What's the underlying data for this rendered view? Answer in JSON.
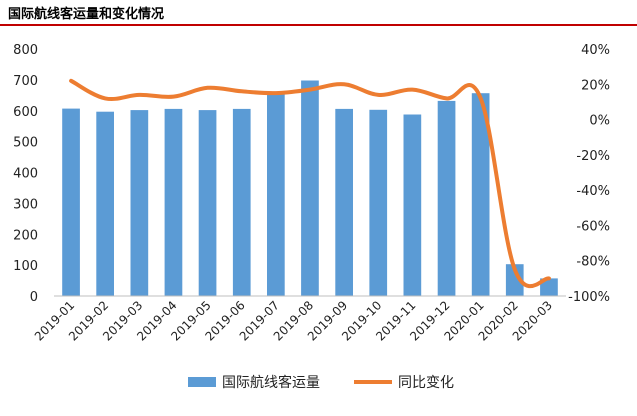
{
  "title": "国际航线客运量和变化情况",
  "colors": {
    "bar": "#5b9bd5",
    "line": "#ed7d31",
    "rule": "#c00000"
  },
  "chart_data": {
    "type": "bar+line",
    "categories": [
      "2019-01",
      "2019-02",
      "2019-03",
      "2019-04",
      "2019-05",
      "2019-06",
      "2019-07",
      "2019-08",
      "2019-09",
      "2019-10",
      "2019-11",
      "2019-12",
      "2020-01",
      "2020-02",
      "2020-03"
    ],
    "series": [
      {
        "name": "国际航线客运量",
        "type": "bar",
        "axis": "left",
        "values": [
          607,
          597,
          602,
          606,
          602,
          606,
          659,
          698,
          606,
          603,
          588,
          632,
          657,
          103,
          57
        ]
      },
      {
        "name": "同比变化",
        "type": "line",
        "axis": "right",
        "values": [
          22,
          12,
          14,
          13,
          18,
          16,
          15,
          17,
          20,
          14,
          17,
          12,
          12,
          -85,
          -90
        ]
      }
    ],
    "y_left": {
      "ylim": [
        0,
        800
      ],
      "ticks": [
        "0",
        "100",
        "200",
        "300",
        "400",
        "500",
        "600",
        "700",
        "800"
      ]
    },
    "y_right": {
      "ylim": [
        -100,
        40
      ],
      "ticks": [
        "-100%",
        "-80%",
        "-60%",
        "-40%",
        "-20%",
        "0%",
        "20%",
        "40%"
      ]
    },
    "legend_position": "bottom",
    "grid": false
  }
}
